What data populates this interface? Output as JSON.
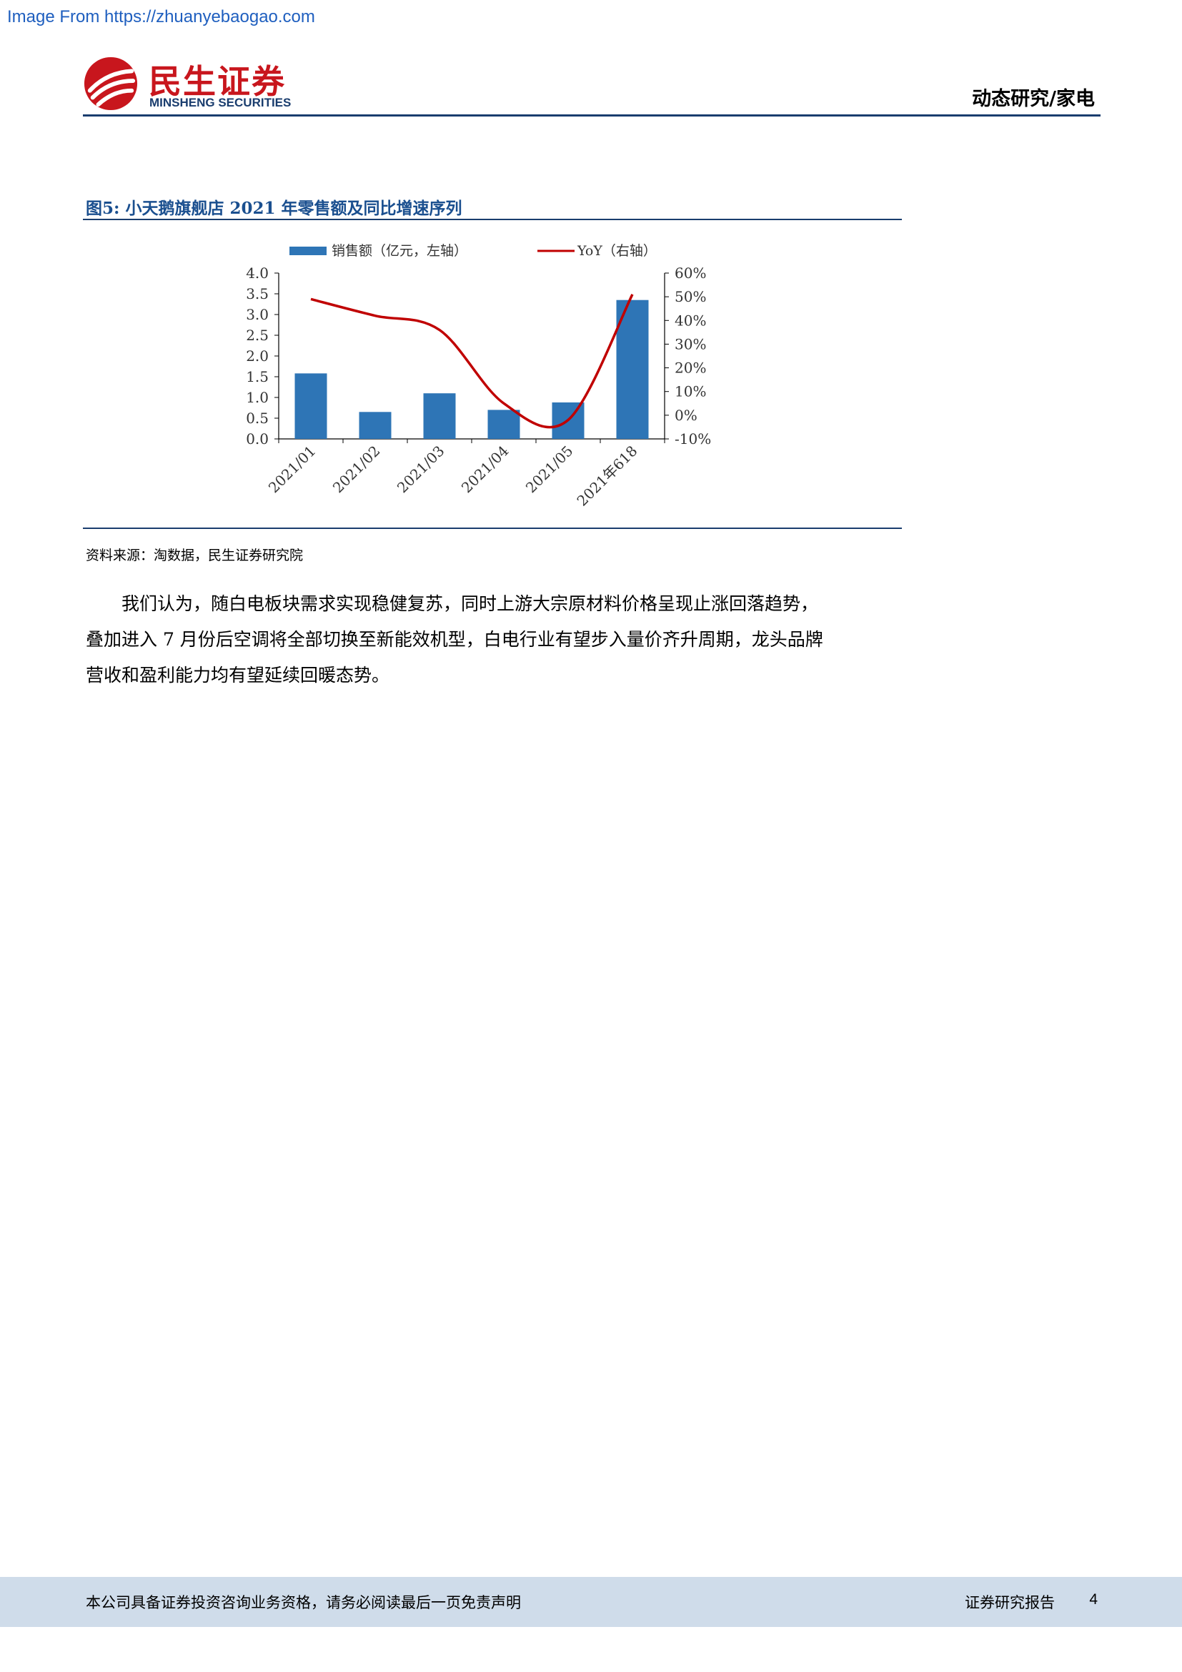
{
  "watermark": "Image From https://zhuanyebaogao.com",
  "header": {
    "logo_cn": "民生证券",
    "logo_en": "MINSHENG SECURITIES",
    "section": "动态研究/家电"
  },
  "figure": {
    "title": "图5: 小天鹅旗舰店 2021 年零售额及同比增速序列",
    "source": "资料来源：淘数据，民生证券研究院"
  },
  "chart_data": {
    "type": "bar+line",
    "categories": [
      "2021/01",
      "2021/02",
      "2021/03",
      "2021/04",
      "2021/05",
      "2021年618"
    ],
    "series": [
      {
        "name": "销售额（亿元，左轴）",
        "type": "bar",
        "axis": "left",
        "values": [
          1.58,
          0.65,
          1.1,
          0.7,
          0.88,
          3.35
        ],
        "color": "#2e75b6"
      },
      {
        "name": "YoY（右轴）",
        "type": "line",
        "axis": "right",
        "values": [
          49,
          42,
          36,
          5,
          -2,
          51
        ],
        "color": "#c00000"
      }
    ],
    "yleft": {
      "min": 0,
      "max": 4,
      "ticks": [
        "0.0",
        "0.5",
        "1.0",
        "1.5",
        "2.0",
        "2.5",
        "3.0",
        "3.5",
        "4.0"
      ]
    },
    "yright": {
      "min": -10,
      "max": 60,
      "ticks": [
        "-10%",
        "0%",
        "10%",
        "20%",
        "30%",
        "40%",
        "50%",
        "60%"
      ]
    },
    "legend": "top"
  },
  "body": {
    "paragraph_lines": [
      "我们认为，随白电板块需求实现稳健复苏，同时上游大宗原材料价格呈现止涨回落趋势，",
      "叠加进入 7 月份后空调将全部切换至新能效机型，白电行业有望步入量价齐升周期，龙头品牌",
      "营收和盈利能力均有望延续回暖态势。"
    ]
  },
  "footer": {
    "disclaimer": "本公司具备证券投资咨询业务资格，请务必阅读最后一页免责声明",
    "report_type": "证券研究报告",
    "page": "4"
  }
}
